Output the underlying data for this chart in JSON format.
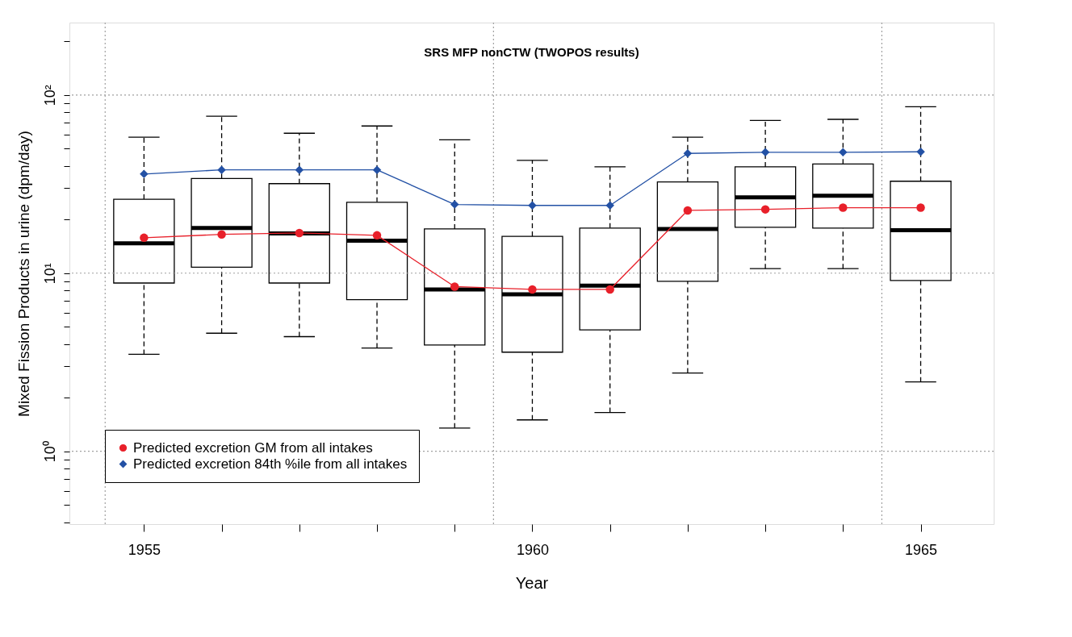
{
  "chart_data": {
    "type": "box",
    "title": "SRS MFP nonCTW (TWOPOS results)",
    "xlabel": "Year",
    "ylabel": "Mixed Fission Products in urine (dpm/day)",
    "x": [
      1955,
      1956,
      1957,
      1958,
      1959,
      1960,
      1961,
      1962,
      1963,
      1964,
      1965
    ],
    "boxes": [
      {
        "low": 3.5,
        "q1": 8.8,
        "median": 14.7,
        "q3": 26,
        "high": 58
      },
      {
        "low": 4.6,
        "q1": 10.8,
        "median": 17.9,
        "q3": 34,
        "high": 76
      },
      {
        "low": 4.4,
        "q1": 8.8,
        "median": 16.7,
        "q3": 31.8,
        "high": 61
      },
      {
        "low": 3.8,
        "q1": 7.1,
        "median": 15.2,
        "q3": 25,
        "high": 67
      },
      {
        "low": 1.35,
        "q1": 3.95,
        "median": 8.1,
        "q3": 17.7,
        "high": 56
      },
      {
        "low": 1.5,
        "q1": 3.6,
        "median": 7.6,
        "q3": 16.1,
        "high": 43
      },
      {
        "low": 1.65,
        "q1": 4.8,
        "median": 8.5,
        "q3": 17.9,
        "high": 39.5
      },
      {
        "low": 2.75,
        "q1": 9.0,
        "median": 17.7,
        "q3": 32.5,
        "high": 58
      },
      {
        "low": 10.6,
        "q1": 18.1,
        "median": 26.6,
        "q3": 39.5,
        "high": 72
      },
      {
        "low": 10.6,
        "q1": 17.9,
        "median": 27.2,
        "q3": 41,
        "high": 73
      },
      {
        "low": 2.45,
        "q1": 9.1,
        "median": 17.4,
        "q3": 32.8,
        "high": 86
      }
    ],
    "series": [
      {
        "name": "Predicted excretion GM from all intakes",
        "type": "line",
        "marker": "circle",
        "color": "#e8202a",
        "values": [
          15.8,
          16.5,
          16.8,
          16.3,
          8.4,
          8.1,
          8.1,
          22.5,
          22.8,
          23.3,
          23.3
        ]
      },
      {
        "name": "Predicted excretion 84th %ile from all intakes",
        "type": "line",
        "marker": "diamond",
        "color": "#2351a5",
        "values": [
          36,
          38,
          38,
          38,
          24.3,
          24,
          24,
          47,
          47.7,
          47.7,
          48
        ]
      }
    ],
    "log": "y",
    "xlim": [
      1954.04,
      1965.94
    ],
    "ylim": [
      0.39,
      255
    ],
    "xticks": [
      1955,
      {
        "value": 1956,
        "label": null
      },
      {
        "value": 1957,
        "label": null
      },
      {
        "value": 1958,
        "label": null
      },
      {
        "value": 1959,
        "label": null
      },
      1960,
      {
        "value": 1961,
        "label": null
      },
      {
        "value": 1962,
        "label": null
      },
      {
        "value": 1963,
        "label": null
      },
      {
        "value": 1964,
        "label": null
      },
      1965
    ],
    "yticks": [
      {
        "value": 0.4,
        "label": null
      },
      {
        "value": 0.5,
        "label": null
      },
      {
        "value": 0.6,
        "label": null
      },
      {
        "value": 0.7,
        "label": null
      },
      {
        "value": 0.8,
        "label": null
      },
      {
        "value": 0.9,
        "label": null
      },
      {
        "value": 1,
        "label": "10⁰"
      },
      {
        "value": 2,
        "label": null
      },
      {
        "value": 3,
        "label": null
      },
      {
        "value": 4,
        "label": null
      },
      {
        "value": 5,
        "label": null
      },
      {
        "value": 6,
        "label": null
      },
      {
        "value": 7,
        "label": null
      },
      {
        "value": 8,
        "label": null
      },
      {
        "value": 9,
        "label": null
      },
      {
        "value": 10,
        "label": "10¹"
      },
      {
        "value": 20,
        "label": null
      },
      {
        "value": 30,
        "label": null
      },
      {
        "value": 40,
        "label": null
      },
      {
        "value": 50,
        "label": null
      },
      {
        "value": 60,
        "label": null
      },
      {
        "value": 70,
        "label": null
      },
      {
        "value": 80,
        "label": null
      },
      {
        "value": 90,
        "label": null
      },
      {
        "value": 100,
        "label": "10²"
      },
      {
        "value": 200,
        "label": null
      }
    ],
    "ref_lines": [
      {
        "axis": "x",
        "value": 1954.5,
        "line_style": "dotted",
        "color": "#a0a0a0"
      },
      {
        "axis": "x",
        "value": 1959.5,
        "line_style": "dotted",
        "color": "#a0a0a0"
      },
      {
        "axis": "x",
        "value": 1964.5,
        "line_style": "dotted",
        "color": "#a0a0a0"
      },
      {
        "axis": "y",
        "value": 1,
        "line_style": "dotted",
        "color": "#a0a0a0"
      },
      {
        "axis": "y",
        "value": 10,
        "line_style": "dotted",
        "color": "#a0a0a0"
      },
      {
        "axis": "y",
        "value": 100,
        "line_style": "dotted",
        "color": "#a0a0a0"
      }
    ],
    "grid": false,
    "legend": "bottom left"
  }
}
